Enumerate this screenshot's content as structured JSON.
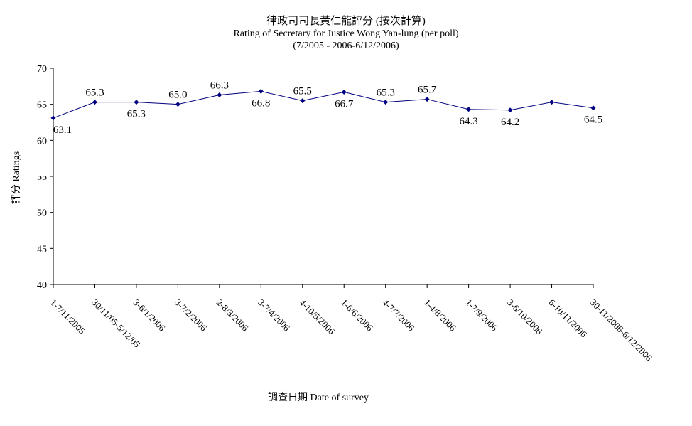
{
  "chart_data": {
    "type": "line",
    "title": "律政司司長黃仁龍評分 (按次計算)",
    "subtitle": "Rating of Secretary for Justice Wong Yan-lung  (per poll)",
    "subtitle2": "(7/2005 - 2006-6/12/2006)",
    "xlabel": "調查日期 Date of survey",
    "ylabel": "評分 Ratings",
    "ylim": [
      40,
      70
    ],
    "yticks": [
      40,
      45,
      50,
      55,
      60,
      65,
      70
    ],
    "grid": false,
    "legend": "none",
    "line_color": "#000080",
    "categories": [
      "1-7/11/2005",
      "30/11/05-5/12/05",
      "3-6/1/2006",
      "3-7/2/2006",
      "2-8/3/2006",
      "3-7/4/2006",
      "4-10/5/2006",
      "1-6/6/2006",
      "4-7/7/2006",
      "1-4/8/2006",
      "1-7/9/2006",
      "3-6/10/2006",
      "6-10/11/2006",
      "30-11/2006-6/12/2006"
    ],
    "values": [
      63.1,
      65.3,
      65.3,
      65.0,
      66.3,
      66.8,
      65.5,
      66.7,
      65.3,
      65.7,
      64.3,
      64.2,
      65.3,
      64.5
    ],
    "data_labels": [
      "63.1",
      "65.3",
      "65.3",
      "65.0",
      "66.3",
      "66.8",
      "65.5",
      "66.7",
      "65.3",
      "65.7",
      "64.3",
      "64.2",
      "",
      "64.5"
    ]
  }
}
